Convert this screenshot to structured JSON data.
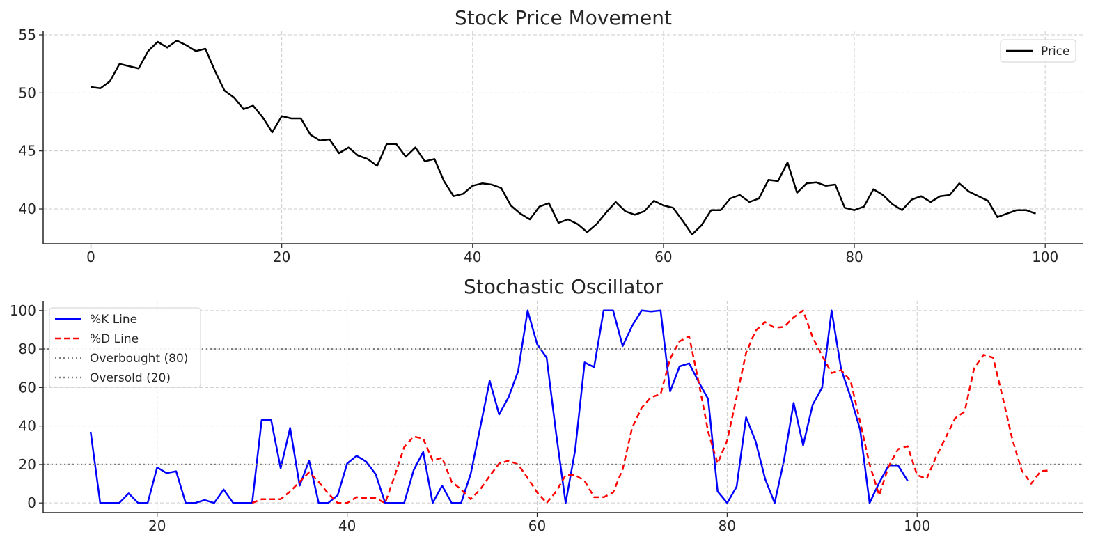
{
  "chart_data": [
    {
      "type": "line",
      "title": "Stock Price Movement",
      "xlabel": "",
      "ylabel": "",
      "xlim": [
        -5,
        104
      ],
      "ylim": [
        37,
        55.3
      ],
      "x_ticks": [
        0,
        20,
        40,
        60,
        80,
        100
      ],
      "y_ticks": [
        40,
        45,
        50,
        55
      ],
      "grid": true,
      "legend_position": "top-right",
      "x_start": 0,
      "series": [
        {
          "name": "Price",
          "color": "#000000",
          "style": "solid",
          "values": [
            50.5,
            50.4,
            51.0,
            52.5,
            52.3,
            52.1,
            53.6,
            54.4,
            53.9,
            54.5,
            54.1,
            53.6,
            53.8,
            51.9,
            50.2,
            49.6,
            48.6,
            48.9,
            47.9,
            46.6,
            48.0,
            47.8,
            47.8,
            46.4,
            45.9,
            46.0,
            44.8,
            45.3,
            44.6,
            44.3,
            43.7,
            45.6,
            45.6,
            44.5,
            45.3,
            44.1,
            44.3,
            42.4,
            41.1,
            41.3,
            42.0,
            42.2,
            42.1,
            41.8,
            40.3,
            39.6,
            39.1,
            40.2,
            40.5,
            38.8,
            39.1,
            38.7,
            38.0,
            38.7,
            39.7,
            40.6,
            39.8,
            39.5,
            39.8,
            40.7,
            40.3,
            40.1,
            39.0,
            37.8,
            38.6,
            39.9,
            39.9,
            40.9,
            41.2,
            40.6,
            40.9,
            42.5,
            42.4,
            44.0,
            41.4,
            42.2,
            42.3,
            42.0,
            42.1,
            40.1,
            39.9,
            40.2,
            41.7,
            41.2,
            40.4,
            39.9,
            40.8,
            41.1,
            40.6,
            41.1,
            41.2,
            42.2,
            41.5,
            41.1,
            40.7,
            39.3,
            39.6,
            39.9,
            39.9,
            39.6
          ]
        }
      ]
    },
    {
      "type": "line",
      "title": "Stochastic Oscillator",
      "xlabel": "",
      "ylabel": "",
      "xlim": [
        8,
        117.5
      ],
      "ylim": [
        -5,
        105
      ],
      "x_ticks": [
        20,
        40,
        60,
        80,
        100
      ],
      "y_ticks": [
        0,
        20,
        40,
        60,
        80,
        100
      ],
      "grid": true,
      "legend_position": "top-left",
      "series": [
        {
          "name": "%K Line",
          "color": "#0000ff",
          "style": "solid",
          "x_start": 13,
          "values": [
            37,
            0,
            0,
            0,
            5,
            0,
            0,
            18.5,
            15.5,
            16.5,
            0,
            0,
            1.5,
            0,
            7,
            0,
            0,
            0,
            43,
            43,
            18,
            39,
            9,
            22,
            0,
            0,
            4,
            20.5,
            24.5,
            21.5,
            15,
            0,
            0,
            0,
            17,
            26.5,
            0,
            9,
            0,
            0,
            15,
            39,
            63.5,
            46,
            55,
            68.5,
            100,
            82.5,
            75.5,
            36,
            0,
            27.5,
            73,
            70.5,
            100,
            100,
            81.5,
            92,
            100,
            99.5,
            100,
            58,
            71,
            72.5,
            63,
            54,
            6,
            0,
            8.5,
            44.5,
            32,
            12.5,
            0,
            22.5,
            52,
            30,
            51,
            60,
            100,
            69.5,
            55,
            38,
            0,
            10.5,
            19.5,
            19.5,
            11.5
          ]
        },
        {
          "name": "%D Line",
          "color": "#ff0000",
          "style": "dashed",
          "x_start": 30,
          "values": [
            0,
            2,
            2,
            2,
            6,
            11,
            16,
            11,
            5,
            0,
            0,
            3,
            2.5,
            2.5,
            0,
            14,
            29,
            34.5,
            33.5,
            22,
            23.5,
            11,
            7,
            2,
            7,
            14,
            20.5,
            22,
            20,
            13,
            5.5,
            0,
            6,
            14.5,
            14.5,
            11.5,
            3,
            3,
            5.5,
            17.5,
            39,
            49.5,
            55,
            56.5,
            75,
            84,
            86.5,
            63,
            37,
            20.5,
            32.5,
            55,
            78,
            89.5,
            94,
            91,
            91.5,
            96.5,
            100,
            86,
            76.5,
            67.5,
            69,
            63.5,
            42,
            20,
            4,
            19,
            28,
            29.5,
            14.5,
            12.5,
            24,
            34,
            44,
            47.5,
            70,
            77,
            75.5,
            55,
            33.5,
            17,
            10,
            16.5,
            17
          ]
        },
        {
          "name": "Overbought (80)",
          "color": "#808080",
          "style": "dotted",
          "value": 80
        },
        {
          "name": "Oversold (20)",
          "color": "#808080",
          "style": "dotted",
          "value": 20
        }
      ]
    }
  ]
}
